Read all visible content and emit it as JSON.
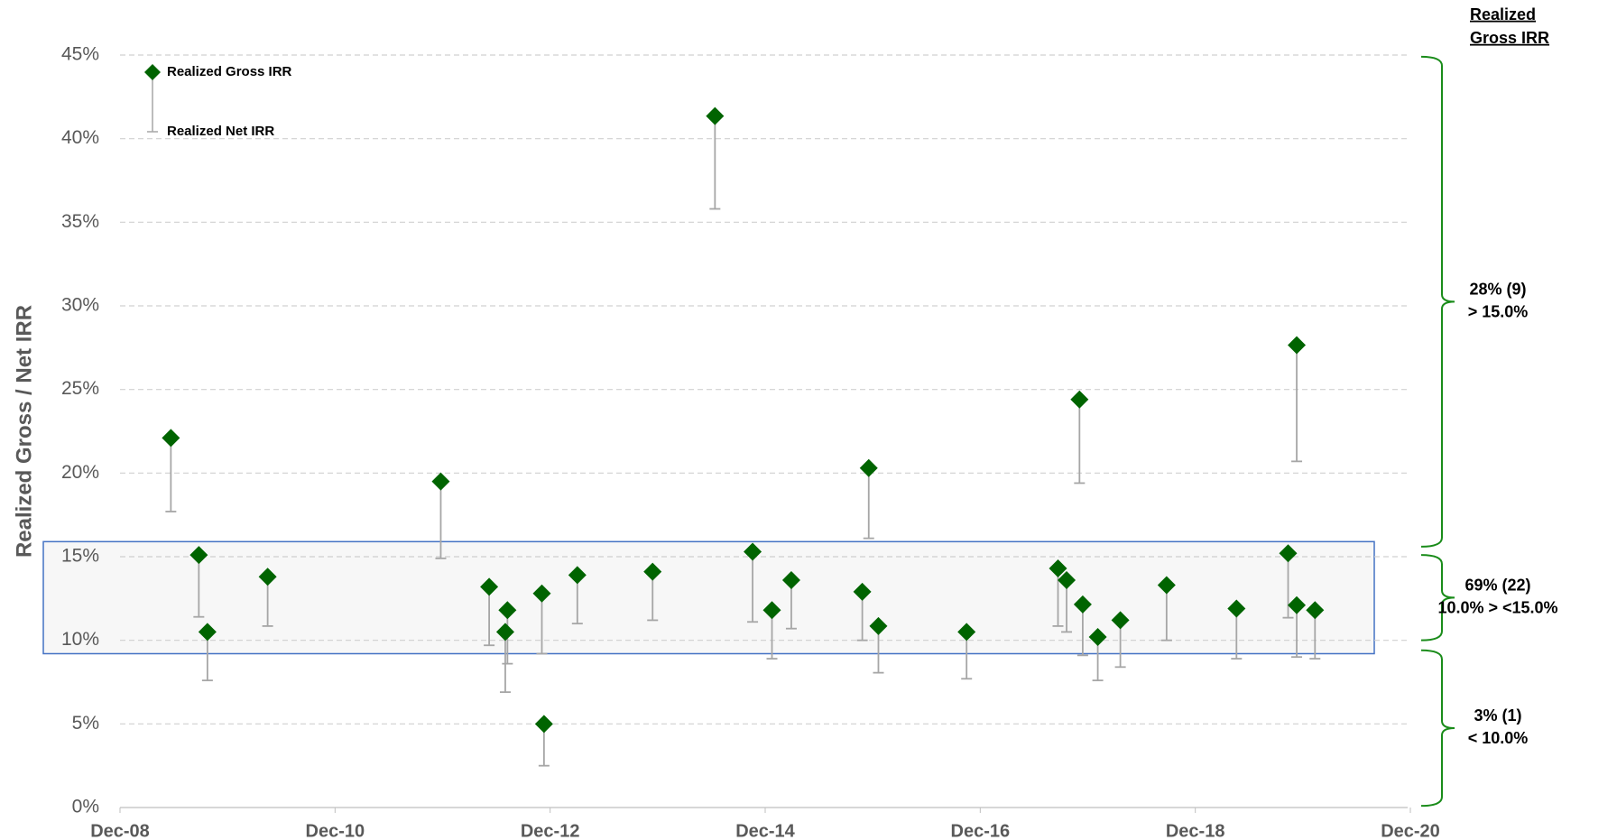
{
  "chart_data": {
    "type": "scatter",
    "y_label": "Realized Gross / Net IRR",
    "x": [
      2009.39,
      2009.65,
      2009.73,
      2010.29,
      2011.9,
      2012.35,
      2012.52,
      2012.5,
      2012.84,
      2012.86,
      2013.17,
      2013.87,
      2014.45,
      2014.8,
      2014.98,
      2015.16,
      2015.82,
      2015.88,
      2015.97,
      2016.79,
      2017.64,
      2017.72,
      2017.84,
      2017.87,
      2018.01,
      2018.22,
      2018.65,
      2019.3,
      2019.78,
      2019.86,
      2019.86,
      2020.03
    ],
    "series": [
      {
        "name": "Realized Gross IRR",
        "color": "#006400",
        "values": [
          22.1,
          15.1,
          10.5,
          13.8,
          19.5,
          13.2,
          11.8,
          10.5,
          12.8,
          5.0,
          13.9,
          14.1,
          41.35,
          15.3,
          11.8,
          13.6,
          12.9,
          20.3,
          10.85,
          10.5,
          14.3,
          13.6,
          24.4,
          12.15,
          10.2,
          11.2,
          13.3,
          11.9,
          15.2,
          27.65,
          12.1,
          11.8
        ]
      },
      {
        "name": "Realized Net IRR",
        "color": "#a6a6a6",
        "values": [
          17.7,
          11.4,
          7.6,
          10.85,
          14.9,
          9.7,
          8.6,
          6.9,
          9.2,
          2.5,
          11.0,
          11.2,
          35.8,
          11.1,
          8.9,
          10.7,
          10.0,
          16.1,
          8.06,
          7.7,
          10.85,
          10.5,
          19.4,
          9.1,
          7.6,
          8.4,
          10.0,
          8.9,
          11.35,
          20.7,
          9.0,
          8.9
        ]
      }
    ],
    "xlim": [
      2008.917,
      2020.917
    ],
    "xticks": [
      {
        "value": 2008.917,
        "label": "Dec-08"
      },
      {
        "value": 2010.917,
        "label": "Dec-10"
      },
      {
        "value": 2012.917,
        "label": "Dec-12"
      },
      {
        "value": 2014.917,
        "label": "Dec-14"
      },
      {
        "value": 2016.917,
        "label": "Dec-16"
      },
      {
        "value": 2018.917,
        "label": "Dec-18"
      },
      {
        "value": 2020.917,
        "label": "Dec-20"
      }
    ],
    "ylim": [
      0,
      45
    ],
    "yticks": [
      {
        "value": 0,
        "label": "0%"
      },
      {
        "value": 5,
        "label": "5%"
      },
      {
        "value": 10,
        "label": "10%"
      },
      {
        "value": 15,
        "label": "15%"
      },
      {
        "value": 20,
        "label": "20%"
      },
      {
        "value": 25,
        "label": "25%"
      },
      {
        "value": 30,
        "label": "30%"
      },
      {
        "value": 35,
        "label": "35%"
      },
      {
        "value": 40,
        "label": "40%"
      },
      {
        "value": 45,
        "label": "45%"
      }
    ],
    "grid": true,
    "highlight_range": [
      9.2,
      15.9
    ],
    "legend": "upper left",
    "bracket_header": [
      "Realized",
      "Gross IRR"
    ],
    "brackets": [
      {
        "lines": [
          "28% (9)",
          "> 15.0%"
        ],
        "range": [
          15.6,
          44.9
        ]
      },
      {
        "lines": [
          "69% (22)",
          "10.0% > <15.0%"
        ],
        "range": [
          10.0,
          15.1
        ]
      },
      {
        "lines": [
          "3% (1)",
          "< 10.0%"
        ],
        "range": [
          0.1,
          9.4
        ]
      }
    ]
  }
}
